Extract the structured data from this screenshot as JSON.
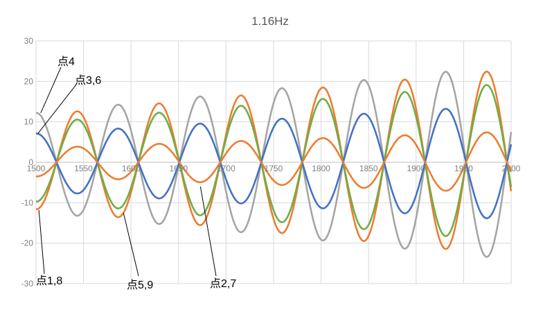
{
  "chart_data": {
    "type": "line",
    "title": "1.16Hz",
    "xlabel": "",
    "ylabel": "",
    "xlim": [
      1500,
      2000
    ],
    "ylim": [
      -30,
      30
    ],
    "x_ticks": [
      1500,
      1550,
      1600,
      1650,
      1700,
      1750,
      1800,
      1850,
      1900,
      1950,
      2000
    ],
    "y_ticks": [
      30,
      20,
      10,
      0,
      -10,
      -20,
      -30
    ],
    "grid": true,
    "legend": "none",
    "period": 86.2,
    "series": [
      {
        "color": "#a5a5a5",
        "phase": "+cos",
        "amplitude_start": 12.2,
        "amplitude_end": 24.0
      },
      {
        "color": "#ed7d31",
        "phase": "-cos",
        "amplitude_start": 11.6,
        "amplitude_end": 23.0
      },
      {
        "color": "#70ad47",
        "phase": "-cos",
        "amplitude_start": 9.7,
        "amplitude_end": 19.6
      },
      {
        "color": "#4472c4",
        "phase": "+cos",
        "amplitude_start": 7.1,
        "amplitude_end": 14.2
      },
      {
        "color": "#ed7d31",
        "phase": "-cos",
        "amplitude_start": 3.5,
        "amplitude_end": 7.6
      }
    ],
    "annotations": [
      {
        "text": "点4",
        "target": [
          1505,
          12.2
        ]
      },
      {
        "text": "点3,6",
        "target": [
          1502,
          7.1
        ]
      },
      {
        "text": "点1,8",
        "target": [
          1503,
          -11.8
        ]
      },
      {
        "text": "点5,9",
        "target": [
          1592,
          -12.5
        ]
      },
      {
        "text": "点2,7",
        "target": [
          1673,
          -6.0
        ]
      }
    ]
  }
}
